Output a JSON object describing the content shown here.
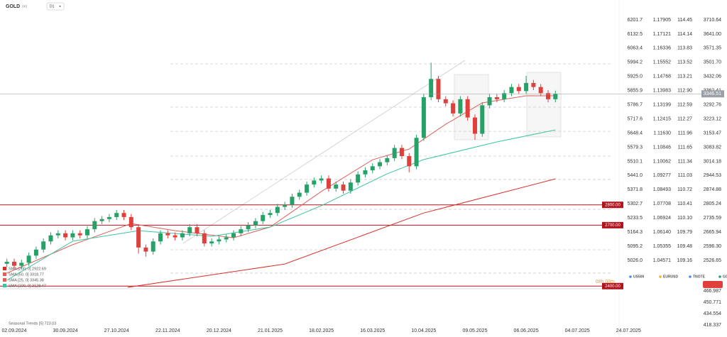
{
  "header": {
    "symbol": "GOLD",
    "subtitle": "oro",
    "timeframe": "D1"
  },
  "chart_data": {
    "type": "candlestick",
    "up_color": "#26a269",
    "down_color": "#e0403c",
    "open": [
      2510,
      2520,
      2500,
      2515,
      2550,
      2580,
      2620,
      2650,
      2660,
      2640,
      2660,
      2650,
      2680,
      2720,
      2730,
      2740,
      2760,
      2740,
      2690,
      2590,
      2570,
      2620,
      2660,
      2650,
      2640,
      2660,
      2690,
      2660,
      2610,
      2620,
      2630,
      2640,
      2660,
      2680,
      2700,
      2720,
      2750,
      2760,
      2790,
      2800,
      2840,
      2860,
      2900,
      2920,
      2930,
      2880,
      2900,
      2870,
      2910,
      2950,
      2970,
      2990,
      3010,
      3030,
      3080,
      3040,
      2990,
      3130,
      3330,
      3420,
      3320,
      3300,
      3250,
      3320,
      3230,
      3150,
      3290,
      3330,
      3320,
      3350,
      3380,
      3360,
      3400,
      3380,
      3350,
      3320
    ],
    "high": [
      2535,
      2535,
      2530,
      2565,
      2595,
      2635,
      2665,
      2675,
      2675,
      2675,
      2675,
      2695,
      2735,
      2745,
      2755,
      2775,
      2775,
      2755,
      2705,
      2605,
      2635,
      2675,
      2675,
      2665,
      2675,
      2705,
      2705,
      2675,
      2635,
      2645,
      2655,
      2675,
      2695,
      2715,
      2735,
      2765,
      2775,
      2805,
      2815,
      2855,
      2875,
      2915,
      2935,
      2945,
      2945,
      2915,
      2915,
      2925,
      2965,
      2985,
      3005,
      3025,
      3045,
      3095,
      3095,
      3055,
      3145,
      3345,
      3500,
      3435,
      3335,
      3315,
      3335,
      3335,
      3245,
      3305,
      3345,
      3345,
      3365,
      3395,
      3395,
      3435,
      3415,
      3395,
      3365,
      3362
    ],
    "low": [
      2495,
      2485,
      2485,
      2500,
      2535,
      2565,
      2605,
      2635,
      2625,
      2625,
      2635,
      2635,
      2665,
      2705,
      2715,
      2725,
      2725,
      2675,
      2560,
      2545,
      2555,
      2605,
      2635,
      2625,
      2625,
      2645,
      2645,
      2595,
      2595,
      2605,
      2615,
      2625,
      2645,
      2665,
      2685,
      2705,
      2735,
      2745,
      2775,
      2785,
      2825,
      2845,
      2885,
      2905,
      2865,
      2865,
      2855,
      2855,
      2895,
      2935,
      2955,
      2975,
      2995,
      3015,
      3025,
      2960,
      2975,
      3115,
      3315,
      3305,
      3285,
      3235,
      3235,
      3215,
      3120,
      3135,
      3275,
      3305,
      3305,
      3335,
      3345,
      3345,
      3365,
      3335,
      3305,
      3305
    ],
    "close": [
      2520,
      2500,
      2515,
      2550,
      2580,
      2620,
      2650,
      2660,
      2640,
      2660,
      2650,
      2680,
      2720,
      2730,
      2740,
      2760,
      2740,
      2690,
      2590,
      2570,
      2620,
      2660,
      2650,
      2640,
      2660,
      2690,
      2660,
      2610,
      2620,
      2630,
      2640,
      2660,
      2680,
      2700,
      2720,
      2750,
      2760,
      2790,
      2800,
      2840,
      2860,
      2900,
      2920,
      2930,
      2880,
      2900,
      2870,
      2910,
      2950,
      2970,
      2990,
      3010,
      3030,
      3080,
      3040,
      2990,
      3130,
      3330,
      3420,
      3320,
      3300,
      3250,
      3320,
      3230,
      3150,
      3290,
      3330,
      3320,
      3350,
      3380,
      3360,
      3400,
      3380,
      3350,
      3320,
      3346.51
    ],
    "xlim": [
      -0.94,
      84
    ],
    "xticks": [
      {
        "value": 1,
        "label": "02.09.2024"
      },
      {
        "value": 8,
        "label": "30.09.2024"
      },
      {
        "value": 15,
        "label": "27.10.2024"
      },
      {
        "value": 22,
        "label": "22.11.2024"
      },
      {
        "value": 29,
        "label": "20.12.2024"
      },
      {
        "value": 36,
        "label": "21.01.2025"
      },
      {
        "value": 43,
        "label": "18.02.2025"
      },
      {
        "value": 50,
        "label": "16.03.2025"
      },
      {
        "value": 57,
        "label": "10.04.2025"
      },
      {
        "value": 64,
        "label": "09.05.2025"
      },
      {
        "value": 71,
        "label": "06.06.2025"
      },
      {
        "value": 78,
        "label": "04.07.2025"
      },
      {
        "value": 85,
        "label": "24.07.2025"
      }
    ],
    "ylim": [
      2387,
      3808.4
    ],
    "yticks": [
      3710.64,
      {
        "value": 3641,
        "label": "3641.00"
      },
      3571.35,
      {
        "value": 3501.7,
        "label": "3501.70"
      },
      3432.06,
      3362.41,
      3292.76,
      3223.12,
      3153.47,
      3083.82,
      3014.18,
      2944.53,
      2874.88,
      2805.24,
      2735.59,
      2665.94,
      {
        "value": 2596.3,
        "label": "2596.30"
      },
      2526.65
    ],
    "grid": false,
    "overlays": [
      {
        "color": "#e0605a",
        "x": [
          0,
          9,
          17,
          23,
          31,
          36,
          43,
          50,
          55,
          60,
          65,
          71,
          75
        ],
        "values": [
          2464,
          2604,
          2708,
          2673,
          2638,
          2691,
          2866,
          3022,
          3075,
          3197,
          3302,
          3337,
          3337
        ]
      },
      {
        "color": "#3cc4a0",
        "x": [
          0,
          9,
          18,
          28,
          36,
          43,
          52,
          57,
          67,
          75
        ],
        "values": [
          2429,
          2621,
          2673,
          2645,
          2691,
          2796,
          2953,
          3023,
          3110,
          3169
        ]
      },
      {
        "color": "#d9302a",
        "x": [
          16.5,
          38,
          57,
          75
        ],
        "values": [
          2394,
          2509,
          2760,
          2928
        ]
      }
    ],
    "levels": [
      {
        "value": 2800,
        "label": "2800.00"
      },
      {
        "value": 2700,
        "label": "2700.00"
      },
      {
        "value": 2400,
        "label": "2400.00"
      }
    ],
    "level_color": "#b0141c",
    "fib_levels": [
      3494,
      3281,
      3162,
      3040,
      2925,
      2778,
      2579,
      2464
    ],
    "last_price": {
      "value": 3346.51,
      "label": "3346.51"
    },
    "indicators": [
      "SMA [200, 0]  2922.69",
      "SMA [50, 0]  3318.77",
      "SMA [25, 0]  3345.38",
      "SMA [100, 0]  3128.47"
    ]
  },
  "other_scales": [
    [
      "6201.7",
      "6132.5",
      "6063.4",
      "5994.2",
      "5925.0",
      "5855.9",
      "5786.7",
      "5717.6",
      "5648.4",
      "5579.3",
      "5510.1",
      "5441.0",
      "5371.8",
      "5302.7",
      "5233.5",
      "5164.3",
      "5095.2",
      "5026.0"
    ],
    [
      "1.17905",
      "1.17121",
      "1.16336",
      "1.15552",
      "1.14768",
      "1.13983",
      "1.13199",
      "1.12415",
      "1.11630",
      "1.10846",
      "1.10062",
      "1.09277",
      "1.08493",
      "1.07708",
      "1.06924",
      "1.06140",
      "1.05355",
      "1.04571"
    ],
    [
      "114.45",
      "114.14",
      "113.83",
      "113.52",
      "113.21",
      "112.90",
      "112.59",
      "112.27",
      "111.96",
      "111.65",
      "111.34",
      "111.03",
      "110.72",
      "110.41",
      "110.10",
      "109.79",
      "109.48",
      "109.16"
    ]
  ],
  "instruments": [
    {
      "name": "US500",
      "color": "#4a90d9"
    },
    {
      "name": "EURUSD",
      "color": "#f0b429"
    },
    {
      "name": "TNOTE",
      "color": "#4a90d9"
    },
    {
      "name": "GOLD",
      "color": "#26a269"
    }
  ],
  "countdown": "08h 08m",
  "bottom_panel": {
    "label": "Seasonal Trends [5]  723.03",
    "ticks": [
      "466.987",
      "450.771",
      "434.554",
      "418.337"
    ]
  }
}
